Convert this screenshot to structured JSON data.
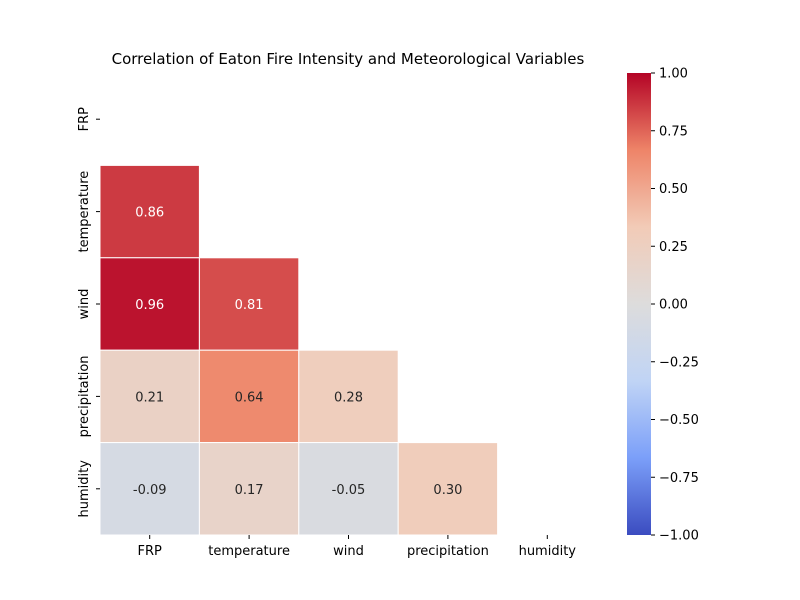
{
  "chart_data": {
    "type": "heatmap",
    "title": "Correlation of Eaton Fire Intensity and Meteorological Variables",
    "variables": [
      "FRP",
      "temperature",
      "wind",
      "precipitation",
      "humidity"
    ],
    "mask": "upper-triangle-including-diagonal",
    "matrix": [
      [
        null,
        null,
        null,
        null,
        null
      ],
      [
        0.86,
        null,
        null,
        null,
        null
      ],
      [
        0.96,
        0.81,
        null,
        null,
        null
      ],
      [
        0.21,
        0.64,
        0.28,
        null,
        null
      ],
      [
        -0.09,
        0.17,
        -0.05,
        0.3,
        null
      ]
    ],
    "value_format": "0.00",
    "colormap": "coolwarm",
    "vmin": -1.0,
    "vmax": 1.0,
    "colorbar_ticks": [
      "1.00",
      "0.75",
      "0.50",
      "0.25",
      "0.00",
      "−0.25",
      "−0.50",
      "−0.75",
      "−1.00"
    ],
    "colorbar_tick_values": [
      1.0,
      0.75,
      0.5,
      0.25,
      0.0,
      -0.25,
      -0.5,
      -0.75,
      -1.0
    ],
    "colormap_stops": [
      "#3b4cc0",
      "#7b9ff9",
      "#c0d4f5",
      "#dddcdc",
      "#f2cbb7",
      "#ee8468",
      "#b40426"
    ]
  }
}
